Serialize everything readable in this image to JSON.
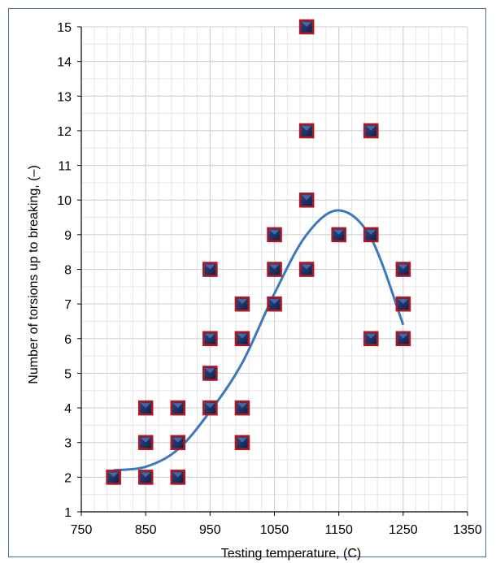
{
  "chart_data": {
    "type": "scatter",
    "title": "",
    "xlabel": "Testing temperature, (C)",
    "ylabel": "Number of torsions up to breaking, (–)",
    "xlim": [
      750,
      1350
    ],
    "ylim": [
      1,
      15
    ],
    "xticks": [
      750,
      850,
      950,
      1050,
      1150,
      1250,
      1350
    ],
    "yticks": [
      1,
      2,
      3,
      4,
      5,
      6,
      7,
      8,
      9,
      10,
      11,
      12,
      13,
      14,
      15
    ],
    "minor_gridlines": true,
    "series": [
      {
        "marker": "square",
        "color": "#b01820",
        "points": [
          [
            800,
            2
          ],
          [
            850,
            2
          ],
          [
            850,
            3
          ],
          [
            850,
            4
          ],
          [
            900,
            2
          ],
          [
            900,
            3
          ],
          [
            900,
            4
          ],
          [
            950,
            4
          ],
          [
            950,
            5
          ],
          [
            950,
            6
          ],
          [
            950,
            8
          ],
          [
            1000,
            3
          ],
          [
            1000,
            4
          ],
          [
            1000,
            6
          ],
          [
            1000,
            7
          ],
          [
            1050,
            7
          ],
          [
            1050,
            8
          ],
          [
            1050,
            9
          ],
          [
            1100,
            8
          ],
          [
            1100,
            10
          ],
          [
            1100,
            12
          ],
          [
            1100,
            15
          ],
          [
            1150,
            9
          ],
          [
            1200,
            6
          ],
          [
            1200,
            9
          ],
          [
            1200,
            12
          ],
          [
            1250,
            6
          ],
          [
            1250,
            7
          ],
          [
            1250,
            8
          ]
        ]
      },
      {
        "type": "line",
        "color": "#3b78c0",
        "points": [
          [
            800,
            2.2
          ],
          [
            850,
            2.3
          ],
          [
            900,
            2.8
          ],
          [
            950,
            3.9
          ],
          [
            1000,
            5.3
          ],
          [
            1050,
            7.3
          ],
          [
            1100,
            9.0
          ],
          [
            1150,
            9.7
          ],
          [
            1200,
            8.9
          ],
          [
            1250,
            6.4
          ]
        ]
      }
    ]
  }
}
